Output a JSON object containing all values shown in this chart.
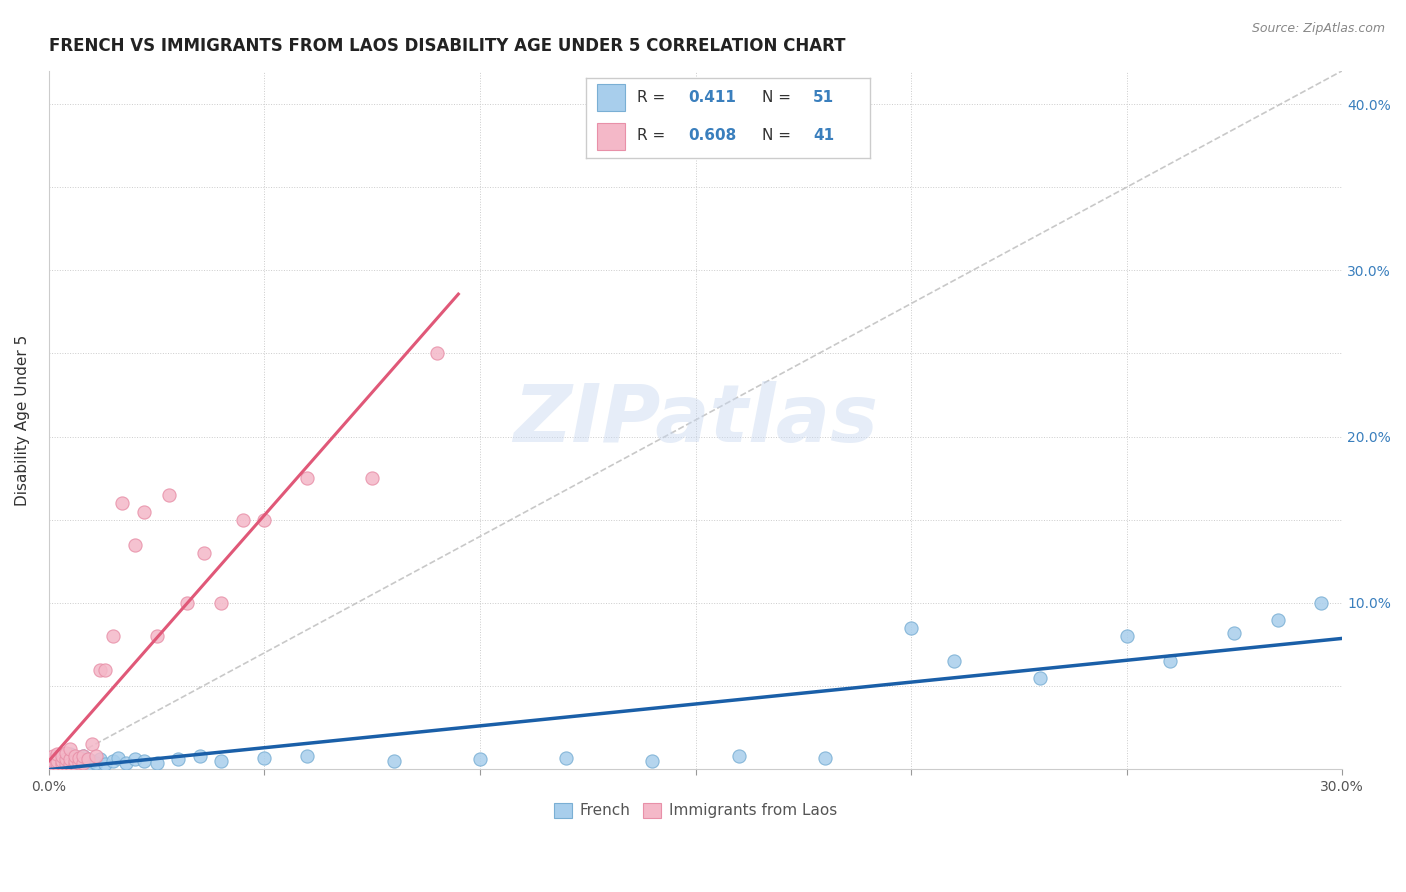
{
  "title": "FRENCH VS IMMIGRANTS FROM LAOS DISABILITY AGE UNDER 5 CORRELATION CHART",
  "source": "Source: ZipAtlas.com",
  "ylabel": "Disability Age Under 5",
  "watermark": "ZIPatlas",
  "xmin": 0.0,
  "xmax": 0.3,
  "ymin": 0.0,
  "ymax": 0.42,
  "french_color": "#A8CEEC",
  "laos_color": "#F4B8C8",
  "french_edge": "#7AAFD4",
  "laos_edge": "#E890A8",
  "trendline_french_color": "#1A5FA8",
  "trendline_laos_color": "#E05878",
  "trendline_dashed_color": "#BBBBBB",
  "background_color": "#FFFFFF",
  "grid_color": "#CCCCCC",
  "title_color": "#222222",
  "right_tick_color": "#3A7FBD",
  "french_x": [
    0.001,
    0.001,
    0.002,
    0.002,
    0.002,
    0.003,
    0.003,
    0.003,
    0.004,
    0.004,
    0.004,
    0.005,
    0.005,
    0.005,
    0.006,
    0.006,
    0.007,
    0.007,
    0.008,
    0.008,
    0.009,
    0.009,
    0.01,
    0.011,
    0.012,
    0.013,
    0.015,
    0.016,
    0.018,
    0.02,
    0.022,
    0.025,
    0.03,
    0.035,
    0.04,
    0.05,
    0.06,
    0.08,
    0.1,
    0.12,
    0.14,
    0.16,
    0.18,
    0.2,
    0.21,
    0.23,
    0.25,
    0.26,
    0.275,
    0.285,
    0.295
  ],
  "french_y": [
    0.003,
    0.006,
    0.002,
    0.004,
    0.007,
    0.003,
    0.005,
    0.008,
    0.002,
    0.004,
    0.007,
    0.003,
    0.005,
    0.009,
    0.002,
    0.006,
    0.003,
    0.007,
    0.004,
    0.008,
    0.003,
    0.006,
    0.005,
    0.004,
    0.006,
    0.003,
    0.005,
    0.007,
    0.004,
    0.006,
    0.005,
    0.004,
    0.006,
    0.008,
    0.005,
    0.007,
    0.008,
    0.005,
    0.006,
    0.007,
    0.005,
    0.008,
    0.007,
    0.085,
    0.065,
    0.055,
    0.08,
    0.065,
    0.082,
    0.09,
    0.1
  ],
  "laos_x": [
    0.001,
    0.001,
    0.001,
    0.002,
    0.002,
    0.002,
    0.003,
    0.003,
    0.003,
    0.004,
    0.004,
    0.004,
    0.005,
    0.005,
    0.005,
    0.006,
    0.006,
    0.006,
    0.007,
    0.007,
    0.008,
    0.008,
    0.009,
    0.01,
    0.011,
    0.012,
    0.013,
    0.015,
    0.017,
    0.02,
    0.022,
    0.025,
    0.028,
    0.032,
    0.036,
    0.04,
    0.045,
    0.05,
    0.06,
    0.075,
    0.09
  ],
  "laos_y": [
    0.003,
    0.005,
    0.008,
    0.003,
    0.005,
    0.009,
    0.003,
    0.005,
    0.008,
    0.003,
    0.006,
    0.01,
    0.003,
    0.006,
    0.012,
    0.003,
    0.005,
    0.008,
    0.004,
    0.007,
    0.004,
    0.008,
    0.006,
    0.015,
    0.008,
    0.06,
    0.06,
    0.08,
    0.16,
    0.135,
    0.155,
    0.08,
    0.165,
    0.1,
    0.13,
    0.1,
    0.15,
    0.15,
    0.175,
    0.175,
    0.25
  ]
}
